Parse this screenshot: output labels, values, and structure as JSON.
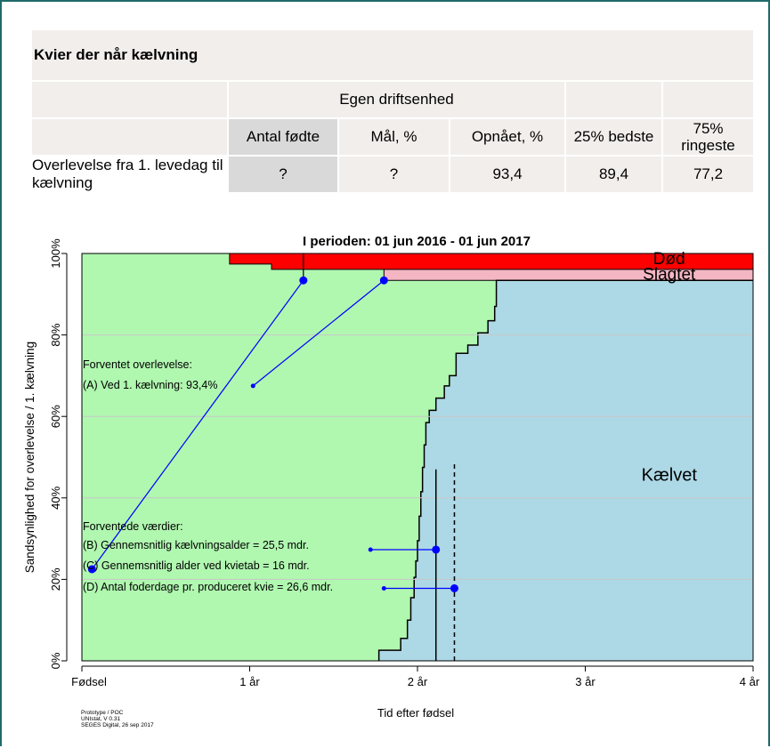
{
  "table": {
    "title": "Kvier der når kælvning",
    "group_header": "Egen driftsenhed",
    "columns": [
      "Antal fødte",
      "Mål, %",
      "Opnået, %",
      "25% bedste",
      "75% ringeste"
    ],
    "row_label": "Overlevelse fra 1. levedag til kælvning",
    "row_values": [
      "?",
      "?",
      "93,4",
      "89,4",
      "77,2"
    ]
  },
  "chart_data": {
    "type": "area",
    "title": "I perioden: 01 jun 2016 - 01 jun 2017",
    "xlabel": "Tid efter fødsel",
    "ylabel": "Sandsynlighed for overlevelse / 1. kælvning",
    "xlim": [
      0,
      4
    ],
    "ylim": [
      0,
      100
    ],
    "x_ticks": [
      {
        "value": 0,
        "label": "Fødsel"
      },
      {
        "value": 1,
        "label": "1 år"
      },
      {
        "value": 2,
        "label": "2 år"
      },
      {
        "value": 3,
        "label": "3 år"
      },
      {
        "value": 4,
        "label": "4 år"
      }
    ],
    "y_ticks": [
      {
        "value": 0,
        "label": "0%"
      },
      {
        "value": 20,
        "label": "20%"
      },
      {
        "value": 40,
        "label": "40%"
      },
      {
        "value": 60,
        "label": "60%"
      },
      {
        "value": 80,
        "label": "80%"
      },
      {
        "value": 100,
        "label": "100%"
      }
    ],
    "grid": true,
    "colors": {
      "dod": "#ff0000",
      "slagtet": "#f4b6c2",
      "kaelvet": "#add8e6",
      "alive": "#b0f7b0",
      "annotation": "#0000ff"
    },
    "series": [
      {
        "name": "Død",
        "points": [
          [
            0.88,
            97.4
          ],
          [
            1.13,
            97.4
          ],
          [
            1.13,
            96.1
          ],
          [
            4.0,
            96.1
          ]
        ]
      },
      {
        "name": "Slagtet",
        "points": [
          [
            1.8,
            96.1
          ],
          [
            1.8,
            93.4
          ],
          [
            4.0,
            93.4
          ]
        ]
      },
      {
        "name": "Kælvet",
        "points": [
          [
            1.77,
            0
          ],
          [
            1.77,
            2.6
          ],
          [
            1.9,
            2.6
          ],
          [
            1.9,
            5.5
          ],
          [
            1.94,
            5.5
          ],
          [
            1.94,
            10.0
          ],
          [
            1.96,
            10.0
          ],
          [
            1.96,
            15.5
          ],
          [
            1.98,
            15.5
          ],
          [
            1.98,
            20.5
          ],
          [
            1.99,
            20.5
          ],
          [
            1.99,
            24.5
          ],
          [
            2.0,
            24.5
          ],
          [
            2.0,
            29.5
          ],
          [
            2.01,
            29.5
          ],
          [
            2.01,
            35.5
          ],
          [
            2.02,
            35.5
          ],
          [
            2.02,
            41.5
          ],
          [
            2.03,
            41.5
          ],
          [
            2.03,
            47.5
          ],
          [
            2.04,
            47.5
          ],
          [
            2.04,
            53.0
          ],
          [
            2.05,
            53.0
          ],
          [
            2.05,
            58.5
          ],
          [
            2.07,
            58.5
          ],
          [
            2.07,
            61.5
          ],
          [
            2.11,
            61.5
          ],
          [
            2.11,
            64.5
          ],
          [
            2.16,
            64.5
          ],
          [
            2.16,
            67.5
          ],
          [
            2.19,
            67.5
          ],
          [
            2.19,
            70.0
          ],
          [
            2.23,
            70.0
          ],
          [
            2.23,
            75.5
          ],
          [
            2.3,
            75.5
          ],
          [
            2.3,
            77.5
          ],
          [
            2.36,
            77.5
          ],
          [
            2.36,
            80.5
          ],
          [
            2.42,
            80.5
          ],
          [
            2.42,
            83.5
          ],
          [
            2.46,
            83.5
          ],
          [
            2.46,
            87.0
          ],
          [
            2.47,
            87.0
          ],
          [
            2.47,
            93.4
          ],
          [
            4.0,
            93.4
          ]
        ]
      }
    ],
    "area_labels": [
      {
        "text": "Død",
        "x": 3.5,
        "y": 98.9
      },
      {
        "text": "Slagtet",
        "x": 3.5,
        "y": 95.1
      },
      {
        "text": "Kælvet",
        "x": 3.5,
        "y": 46.0
      }
    ],
    "reference_lines": [
      {
        "id": "B",
        "x": 2.11,
        "y_from": 0,
        "y_to": 47,
        "dash": false
      },
      {
        "id": "D",
        "x": 2.22,
        "y_from": 0,
        "y_to": 49,
        "dash": true
      }
    ],
    "annotations": {
      "forventet_header": "Forventet overlevelse:",
      "A": {
        "label": "(A) Ved 1. kælvning: 93,4%",
        "from": [
          1.02,
          67.5
        ],
        "to": [
          1.8,
          93.4
        ]
      },
      "A2": {
        "from": [
          0.06,
          22.5
        ],
        "to": [
          1.32,
          93.4
        ]
      },
      "vaerdier_header": "Forventede værdier:",
      "B": {
        "label": "(B) Gennemsnitlig kælvningsalder = 25,5 mdr.",
        "from": [
          1.72,
          27.3
        ],
        "to": [
          2.11,
          27.3
        ]
      },
      "C": {
        "label": "(C) Gennemsnitlig alder ved kvietab = 16 mdr."
      },
      "D": {
        "label": "(D) Antal foderdage pr. produceret kvie = 26,6 mdr.",
        "from": [
          1.8,
          17.8
        ],
        "to": [
          2.22,
          17.8
        ]
      }
    },
    "footer": [
      "Prototype / POC",
      "UNIstat, V 0.31",
      "SEGES Digital, 26 sep 2017"
    ]
  }
}
